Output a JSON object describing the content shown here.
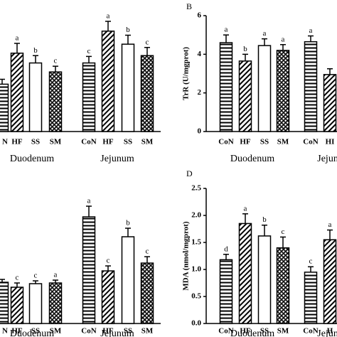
{
  "chart_data": [
    {
      "type": "bar",
      "groups": [
        {
          "name": "Duodenum",
          "categories": [
            "N",
            "HF",
            "SS",
            "SM"
          ],
          "values": [
            5.8,
            9.6,
            8.4,
            7.3
          ],
          "errors": [
            0.6,
            1.2,
            0.9,
            0.7
          ],
          "letters": [
            null,
            "a",
            "b",
            "c"
          ]
        },
        {
          "name": "Jejunum",
          "categories": [
            "CoN",
            "HF",
            "SS",
            "SM"
          ],
          "values": [
            8.4,
            12.3,
            10.7,
            9.3
          ],
          "errors": [
            0.8,
            1.2,
            1.1,
            1.0
          ],
          "letters": [
            "c",
            "a",
            "b",
            "c"
          ]
        }
      ]
    },
    {
      "type": "bar",
      "label": "B",
      "ylabel": "TrR (U/mgprot)",
      "ylim": [
        0,
        6
      ],
      "yticks": [
        0,
        2,
        4,
        6
      ],
      "groups": [
        {
          "name": "Duodenum",
          "categories": [
            "CoN",
            "HF",
            "SS",
            "SM"
          ],
          "values": [
            4.6,
            3.65,
            4.45,
            4.2
          ],
          "errors": [
            0.4,
            0.35,
            0.35,
            0.3
          ],
          "letters": [
            "a",
            "b",
            "a",
            "a"
          ]
        },
        {
          "name": "Jejunum",
          "categories": [
            "CoN",
            "HI"
          ],
          "values": [
            4.65,
            2.95
          ],
          "errors": [
            0.3,
            0.3
          ],
          "letters": [
            "a",
            null
          ]
        }
      ]
    },
    {
      "type": "bar",
      "groups": [
        {
          "name": "Duodenum",
          "categories": [
            "N",
            "HF",
            "SS",
            "SM"
          ],
          "values": [
            5.8,
            5.1,
            5.6,
            5.7
          ],
          "errors": [
            0.4,
            0.6,
            0.4,
            0.4
          ],
          "letters": [
            null,
            "c",
            "c",
            "a"
          ]
        },
        {
          "name": "Jejunum",
          "categories": [
            "CoN",
            "HF",
            "SS",
            "SM"
          ],
          "values": [
            15.0,
            7.4,
            12.2,
            8.5
          ],
          "errors": [
            1.5,
            0.7,
            1.2,
            0.9
          ],
          "letters": [
            "a",
            "c",
            "b",
            "c"
          ]
        }
      ]
    },
    {
      "type": "bar",
      "label": "D",
      "ylabel": "MDA (nmol/mgprot)",
      "ylim": [
        0,
        2.5
      ],
      "yticks": [
        {
          "value": 0,
          "label": "0.0"
        },
        0.5,
        {
          "value": 1,
          "label": "1.0"
        },
        1.5,
        {
          "value": 2,
          "label": "2.0"
        },
        2.5
      ],
      "groups": [
        {
          "name": "Duodenum",
          "categories": [
            "CoN",
            "HF",
            "SS",
            "SM"
          ],
          "values": [
            1.18,
            1.85,
            1.62,
            1.4
          ],
          "errors": [
            0.1,
            0.18,
            0.2,
            0.2
          ],
          "letters": [
            "d",
            "a",
            "b",
            "c"
          ]
        },
        {
          "name": "Jejunum",
          "categories": [
            "CoN",
            "H"
          ],
          "values": [
            0.95,
            1.55
          ],
          "errors": [
            0.1,
            0.18
          ],
          "letters": [
            "c",
            "a"
          ]
        }
      ]
    }
  ]
}
